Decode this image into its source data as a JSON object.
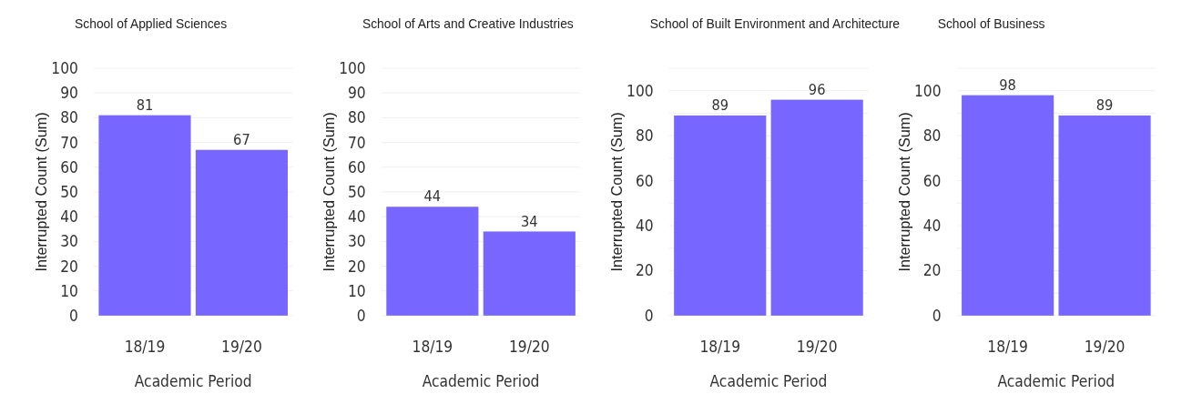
{
  "chart_data": [
    {
      "type": "bar",
      "title": "School of Applied Sciences",
      "categories": [
        "18/19",
        "19/20"
      ],
      "values": [
        81,
        67
      ],
      "color": "#7766ff",
      "xlabel": "Academic Period",
      "ylabel": "Interrupted Count (Sum)",
      "ylim": [
        0,
        100
      ],
      "yticks": [
        0,
        10,
        20,
        30,
        40,
        50,
        60,
        70,
        80,
        90,
        100
      ],
      "grid": "y",
      "data_labels": true
    },
    {
      "type": "bar",
      "title": "School of Arts and Creative Industries",
      "categories": [
        "18/19",
        "19/20"
      ],
      "values": [
        44,
        34
      ],
      "color": "#7766ff",
      "xlabel": "Academic Period",
      "ylabel": "Interrupted Count (Sum)",
      "ylim": [
        0,
        100
      ],
      "yticks": [
        0,
        10,
        20,
        30,
        40,
        50,
        60,
        70,
        80,
        90,
        100
      ],
      "grid": "y",
      "data_labels": true
    },
    {
      "type": "bar",
      "title": "School of Built Environment and Architecture",
      "categories": [
        "18/19",
        "19/20"
      ],
      "values": [
        89,
        96
      ],
      "color": "#7766ff",
      "xlabel": "Academic Period",
      "ylabel": "Interrupted Count (Sum)",
      "ylim": [
        0,
        110
      ],
      "yticks": [
        0,
        {
          "value": 10,
          "label": null
        },
        20,
        {
          "value": 30,
          "label": null
        },
        40,
        {
          "value": 50,
          "label": null
        },
        60,
        {
          "value": 70,
          "label": null
        },
        80,
        {
          "value": 90,
          "label": null
        },
        100,
        {
          "value": 110,
          "label": null
        }
      ],
      "grid": "y",
      "data_labels": true
    },
    {
      "type": "bar",
      "title": "School of Business",
      "categories": [
        "18/19",
        "19/20"
      ],
      "values": [
        98,
        89
      ],
      "color": "#7766ff",
      "xlabel": "Academic Period",
      "ylabel": "Interrupted Count (Sum)",
      "ylim": [
        0,
        110
      ],
      "yticks": [
        0,
        {
          "value": 10,
          "label": null
        },
        20,
        {
          "value": 30,
          "label": null
        },
        40,
        {
          "value": 50,
          "label": null
        },
        60,
        {
          "value": 70,
          "label": null
        },
        80,
        {
          "value": 90,
          "label": null
        },
        100,
        {
          "value": 110,
          "label": null
        }
      ],
      "grid": "y",
      "data_labels": true
    }
  ]
}
